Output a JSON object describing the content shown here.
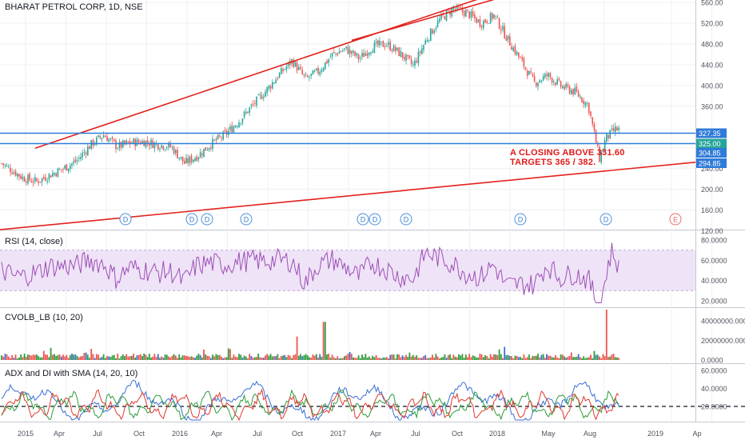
{
  "header": {
    "title": "BHARAT PETROL CORP, 1D, NSE"
  },
  "colors": {
    "candle_up": "#26a69a",
    "candle_down": "#ef5350",
    "trendline": "#e3211c",
    "hline": "#2f7bd9",
    "rsi": "#9c4fb5",
    "rsi_band": "#efe3f7",
    "adx": "#3b6fd4",
    "di_plus": "#2e9c3a",
    "di_minus": "#e0382f",
    "grid": "#eef0f3"
  },
  "chart_data": [
    {
      "type": "candlestick",
      "name": "price",
      "title": "BHARAT PETROL CORP, 1D, NSE",
      "x_ticks": [
        "2015",
        "Apr",
        "Jul",
        "Oct",
        "2016",
        "Apr",
        "Jul",
        "Oct",
        "2017",
        "Apr",
        "Jul",
        "Oct",
        "2018",
        "May",
        "Aug",
        "2019",
        "Ap"
      ],
      "y_ticks": [
        "600.00",
        "560.00",
        "520.00",
        "480.00",
        "440.00",
        "400.00",
        "360.00",
        "280.00",
        "240.00",
        "200.00",
        "160.00",
        "120.00"
      ],
      "ylim": [
        120,
        610
      ],
      "price_path": [
        [
          "2015-01",
          250
        ],
        [
          "2015-02",
          222
        ],
        [
          "2015-03",
          215
        ],
        [
          "2015-05",
          240
        ],
        [
          "2015-06",
          255
        ],
        [
          "2015-07",
          285
        ],
        [
          "2015-08",
          305
        ],
        [
          "2015-09",
          282
        ],
        [
          "2015-10",
          290
        ],
        [
          "2015-11",
          292
        ],
        [
          "2015-12",
          286
        ],
        [
          "2016-01",
          282
        ],
        [
          "2016-02",
          250
        ],
        [
          "2016-03",
          265
        ],
        [
          "2016-04",
          288
        ],
        [
          "2016-05",
          305
        ],
        [
          "2016-06",
          330
        ],
        [
          "2016-07",
          360
        ],
        [
          "2016-08",
          388
        ],
        [
          "2016-09",
          420
        ],
        [
          "2016-10",
          448
        ],
        [
          "2016-11",
          412
        ],
        [
          "2016-12",
          428
        ],
        [
          "2017-01",
          460
        ],
        [
          "2017-02",
          470
        ],
        [
          "2017-03",
          452
        ],
        [
          "2017-04",
          475
        ],
        [
          "2017-05",
          480
        ],
        [
          "2017-06",
          462
        ],
        [
          "2017-07",
          438
        ],
        [
          "2017-08",
          490
        ],
        [
          "2017-09",
          528
        ],
        [
          "2017-10",
          548
        ],
        [
          "2017-11",
          540
        ],
        [
          "2017-12",
          520
        ],
        [
          "2018-01",
          535
        ],
        [
          "2018-02",
          490
        ],
        [
          "2018-03",
          448
        ],
        [
          "2018-04",
          405
        ],
        [
          "2018-05",
          420
        ],
        [
          "2018-06",
          398
        ],
        [
          "2018-07",
          388
        ],
        [
          "2018-08",
          362
        ],
        [
          "2018-09",
          258
        ],
        [
          "2018-09",
          298
        ],
        [
          "2018-10",
          315
        ]
      ],
      "horizontal_lines": [
        327.35,
        325.0,
        304.85
      ],
      "price_labels": [
        {
          "value": "327.35",
          "color": "#2f7bd9"
        },
        {
          "value": "325.00",
          "color": "#26a69a"
        },
        {
          "value": "304.85",
          "color": "#2f7bd9"
        },
        {
          "value": "294.85",
          "color": "#2f7bd9"
        }
      ],
      "events": [
        "D",
        "D",
        "D",
        "D",
        "D",
        "D",
        "D",
        "D",
        "D",
        "E"
      ],
      "annotation": [
        "A CLOSING ABOVE 331.60",
        "TARGETS 365 / 382."
      ]
    },
    {
      "type": "line",
      "name": "RSI (14, close)",
      "y_ticks": [
        "80.0000",
        "60.0000",
        "40.0000",
        "20.0000"
      ],
      "ylim": [
        16,
        82
      ],
      "band": [
        30,
        70
      ],
      "last_value": 60
    },
    {
      "type": "bar",
      "name": "CVOLB_LB (10, 20)",
      "y_ticks": [
        "40000000.0000",
        "20000000.0000",
        "0.0000"
      ],
      "ylim": [
        0,
        45000000
      ],
      "spikes": [
        {
          "date": "2016-12",
          "value": 39000000
        },
        {
          "date": "2016-10",
          "value": 24000000
        },
        {
          "date": "2018-09",
          "value": 55000000
        }
      ]
    },
    {
      "type": "line",
      "name": "ADX and DI with SMA (14, 20, 10)",
      "y_ticks": [
        "60.0000",
        "40.0000",
        "20.0000"
      ],
      "ylim": [
        2,
        62
      ],
      "dashed_level": 20,
      "series": [
        "ADX",
        "+DI",
        "-DI"
      ]
    }
  ],
  "x_axis_labels": [
    "2015",
    "Apr",
    "Jul",
    "Oct",
    "2016",
    "Apr",
    "Jul",
    "Oct",
    "2017",
    "Apr",
    "Jul",
    "Oct",
    "2018",
    "May",
    "Aug",
    "2019",
    "Ap"
  ]
}
